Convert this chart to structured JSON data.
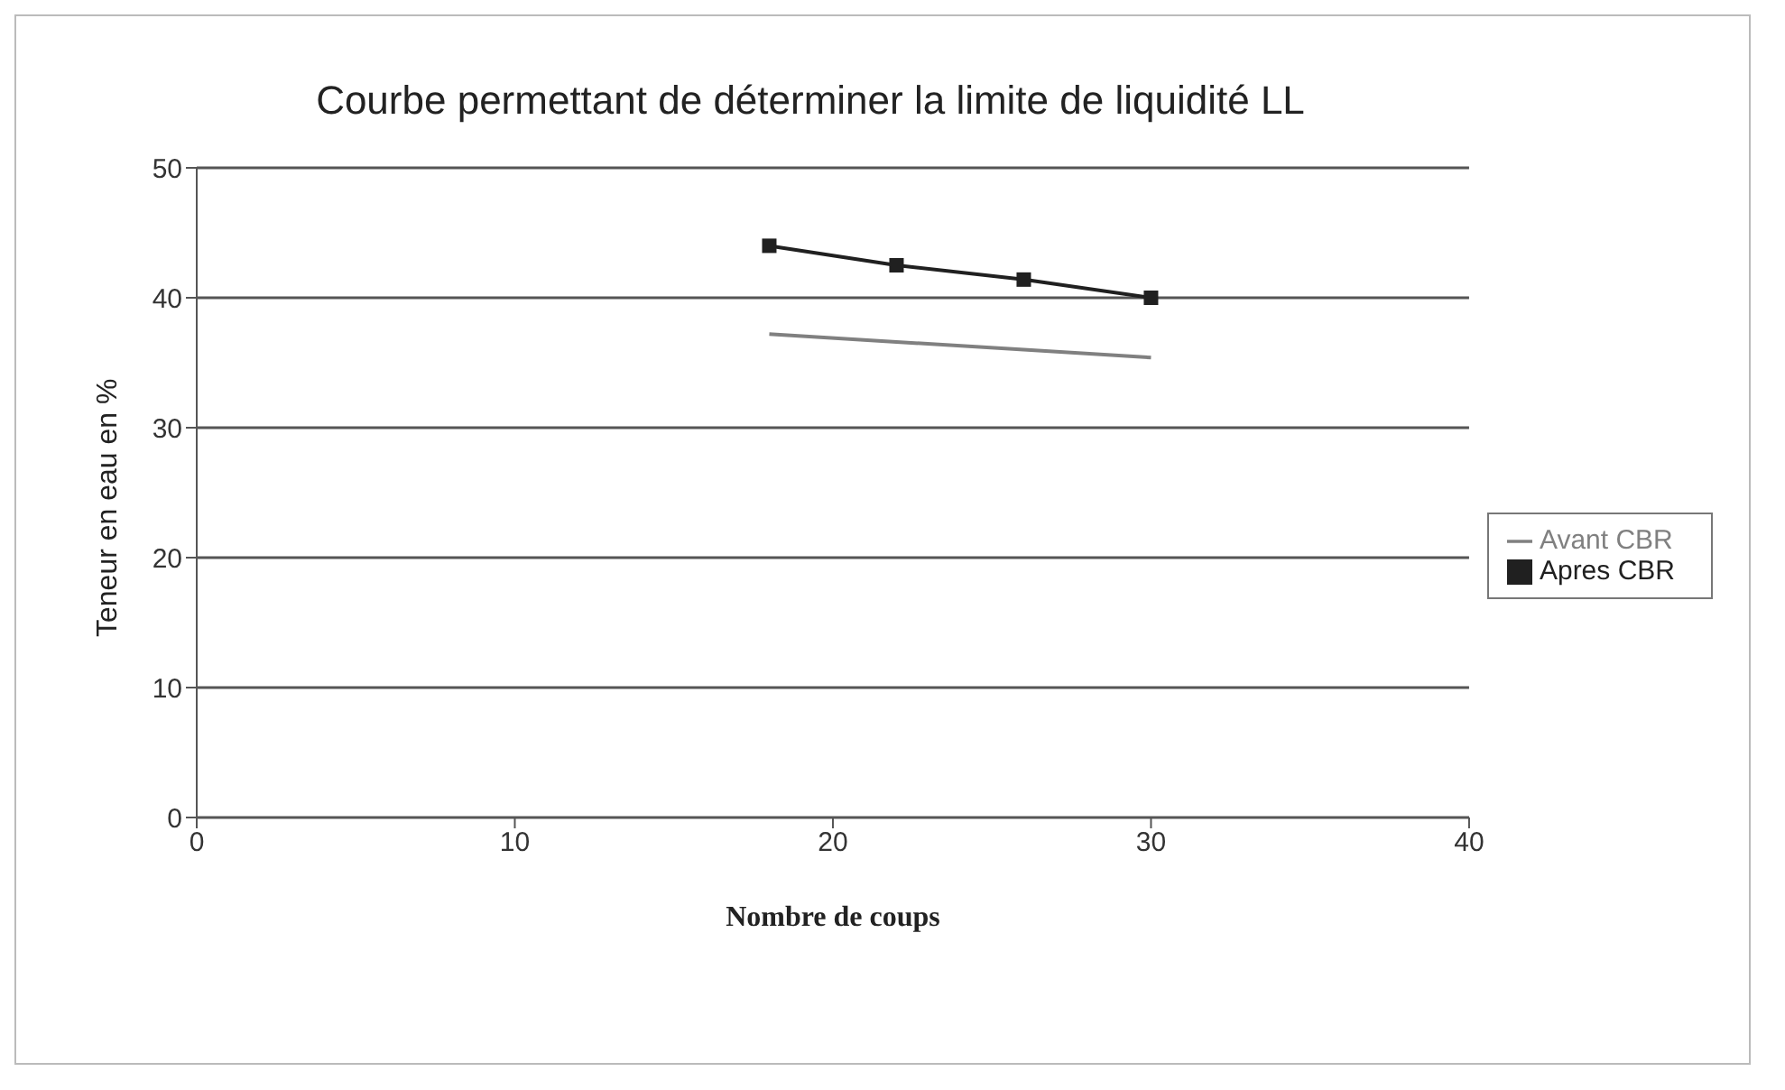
{
  "chart_data": {
    "type": "line",
    "title": "Courbe permettant de déterminer la limite de liquidité LL",
    "xlabel": "Nombre de coups",
    "ylabel": "Teneur en eau en %",
    "x": [
      18,
      22,
      26,
      30
    ],
    "series": [
      {
        "name": "Avant CBR",
        "color": "#808080",
        "values": [
          37.2,
          36.6,
          36,
          35.4
        ],
        "marker": "none"
      },
      {
        "name": "Apres CBR",
        "color": "#202020",
        "values": [
          44,
          42.5,
          41.4,
          40
        ],
        "marker": "square"
      }
    ],
    "xlim": [
      0,
      40
    ],
    "xticks": [
      0,
      10,
      20,
      30,
      40
    ],
    "ylim": [
      0,
      50
    ],
    "yticks": [
      0,
      10,
      20,
      30,
      40,
      50
    ],
    "grid": "y",
    "legend": "right"
  }
}
